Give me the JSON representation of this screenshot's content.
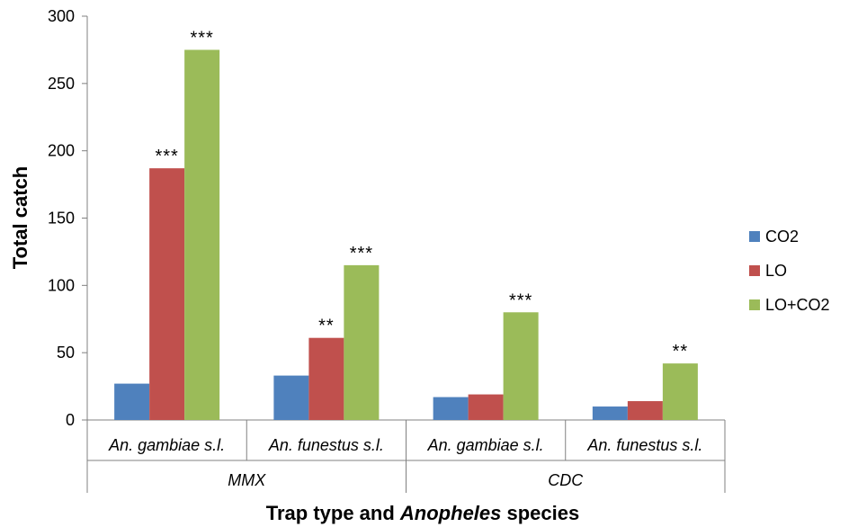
{
  "chart_data": {
    "type": "bar",
    "ylabel": "Total catch",
    "xlabel": {
      "before": "Trap type and ",
      "italic": "Anopheles",
      "after": " species"
    },
    "ylim": [
      0,
      300
    ],
    "yticks": [
      0,
      50,
      100,
      150,
      200,
      250,
      300
    ],
    "groups": [
      {
        "label": "MMX",
        "categories": [
          "An. gambiae s.l.",
          "An. funestus s.l."
        ]
      },
      {
        "label": "CDC",
        "categories": [
          "An. gambiae s.l.",
          "An. funestus s.l."
        ]
      }
    ],
    "series": [
      {
        "name": "CO2",
        "color": "#4f81bd",
        "values": [
          27,
          33,
          17,
          10
        ],
        "sig": [
          "",
          "",
          "",
          ""
        ]
      },
      {
        "name": "LO",
        "color": "#c0504d",
        "values": [
          187,
          61,
          19,
          14
        ],
        "sig": [
          "***",
          "**",
          "",
          ""
        ]
      },
      {
        "name": "LO+CO2",
        "color": "#9bbb59",
        "values": [
          275,
          115,
          80,
          42
        ],
        "sig": [
          "***",
          "***",
          "***",
          "**"
        ]
      }
    ],
    "legend_position": "right",
    "grid": false
  }
}
